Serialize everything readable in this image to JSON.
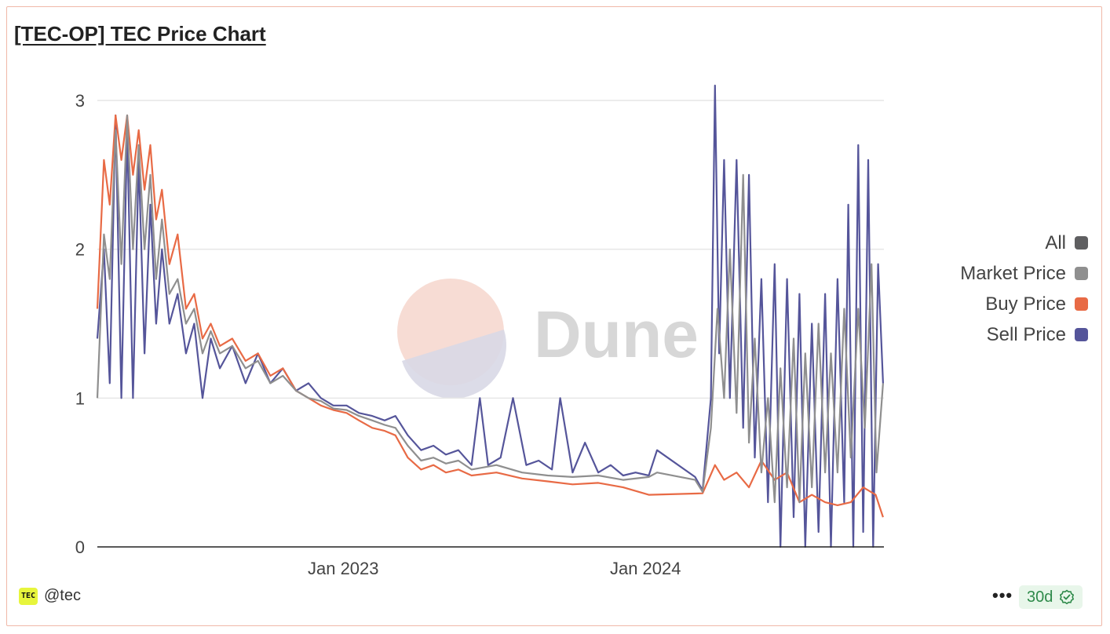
{
  "header": {
    "title": "[TEC-OP] TEC Price Chart"
  },
  "watermark": {
    "text": "Dune"
  },
  "footer": {
    "avatar_text": "TEC",
    "handle": "@tec",
    "more_label": "•••",
    "refresh_badge": "30d"
  },
  "colors": {
    "all": "#5f5f61",
    "market": "#8f8f8f",
    "buy": "#e86a45",
    "sell": "#55559a"
  },
  "legend": [
    {
      "label": "All",
      "color": "#5f5f61"
    },
    {
      "label": "Market Price",
      "color": "#8f8f8f"
    },
    {
      "label": "Buy Price",
      "color": "#e86a45"
    },
    {
      "label": "Sell Price",
      "color": "#55559a"
    }
  ],
  "chart_data": {
    "type": "line",
    "title": "[TEC-OP] TEC Price Chart",
    "xlabel": "",
    "ylabel": "",
    "x_type": "date",
    "xlim": [
      "2022-03-10",
      "2024-10-15"
    ],
    "ylim": [
      0,
      3
    ],
    "yticks": [
      0,
      1,
      2,
      3
    ],
    "xticks": [
      {
        "label": "Jan 2023",
        "date": "2023-01-01"
      },
      {
        "label": "Jan 2024",
        "date": "2024-01-01"
      }
    ],
    "grid": true,
    "legend_position": "right",
    "series": [
      {
        "name": "Sell Price",
        "points": [
          [
            "2022-03-10",
            1.4
          ],
          [
            "2022-03-18",
            2.0
          ],
          [
            "2022-03-25",
            1.1
          ],
          [
            "2022-04-01",
            2.9
          ],
          [
            "2022-04-08",
            1.0
          ],
          [
            "2022-04-15",
            2.8
          ],
          [
            "2022-04-22",
            1.0
          ],
          [
            "2022-04-29",
            2.6
          ],
          [
            "2022-05-06",
            1.3
          ],
          [
            "2022-05-13",
            2.3
          ],
          [
            "2022-05-20",
            1.5
          ],
          [
            "2022-05-27",
            2.0
          ],
          [
            "2022-06-05",
            1.5
          ],
          [
            "2022-06-15",
            1.7
          ],
          [
            "2022-06-25",
            1.3
          ],
          [
            "2022-07-05",
            1.5
          ],
          [
            "2022-07-15",
            1.0
          ],
          [
            "2022-07-25",
            1.4
          ],
          [
            "2022-08-05",
            1.2
          ],
          [
            "2022-08-20",
            1.35
          ],
          [
            "2022-09-05",
            1.1
          ],
          [
            "2022-09-20",
            1.3
          ],
          [
            "2022-10-05",
            1.1
          ],
          [
            "2022-10-20",
            1.2
          ],
          [
            "2022-11-05",
            1.05
          ],
          [
            "2022-11-20",
            1.1
          ],
          [
            "2022-12-05",
            1.0
          ],
          [
            "2022-12-20",
            0.95
          ],
          [
            "2023-01-05",
            0.95
          ],
          [
            "2023-01-20",
            0.9
          ],
          [
            "2023-02-05",
            0.88
          ],
          [
            "2023-02-20",
            0.85
          ],
          [
            "2023-03-05",
            0.88
          ],
          [
            "2023-03-20",
            0.75
          ],
          [
            "2023-04-05",
            0.65
          ],
          [
            "2023-04-20",
            0.68
          ],
          [
            "2023-05-05",
            0.62
          ],
          [
            "2023-05-20",
            0.65
          ],
          [
            "2023-06-05",
            0.55
          ],
          [
            "2023-06-15",
            1.0
          ],
          [
            "2023-06-25",
            0.55
          ],
          [
            "2023-07-10",
            0.6
          ],
          [
            "2023-07-25",
            1.0
          ],
          [
            "2023-08-10",
            0.55
          ],
          [
            "2023-08-25",
            0.58
          ],
          [
            "2023-09-10",
            0.52
          ],
          [
            "2023-09-20",
            1.0
          ],
          [
            "2023-10-05",
            0.5
          ],
          [
            "2023-10-20",
            0.7
          ],
          [
            "2023-11-05",
            0.5
          ],
          [
            "2023-11-20",
            0.55
          ],
          [
            "2023-12-05",
            0.48
          ],
          [
            "2023-12-20",
            0.5
          ],
          [
            "2024-01-05",
            0.48
          ],
          [
            "2024-01-15",
            0.65
          ],
          [
            "2024-03-01",
            0.47
          ],
          [
            "2024-03-10",
            0.38
          ],
          [
            "2024-03-20",
            1.0
          ],
          [
            "2024-03-25",
            3.1
          ],
          [
            "2024-03-30",
            1.3
          ],
          [
            "2024-04-05",
            2.6
          ],
          [
            "2024-04-12",
            1.0
          ],
          [
            "2024-04-20",
            2.6
          ],
          [
            "2024-04-28",
            0.8
          ],
          [
            "2024-05-05",
            2.5
          ],
          [
            "2024-05-12",
            0.6
          ],
          [
            "2024-05-20",
            1.8
          ],
          [
            "2024-05-28",
            0.3
          ],
          [
            "2024-06-05",
            1.9
          ],
          [
            "2024-06-12",
            0.0
          ],
          [
            "2024-06-20",
            1.8
          ],
          [
            "2024-06-28",
            0.2
          ],
          [
            "2024-07-05",
            1.7
          ],
          [
            "2024-07-12",
            0.0
          ],
          [
            "2024-07-20",
            1.5
          ],
          [
            "2024-07-28",
            0.1
          ],
          [
            "2024-08-05",
            1.7
          ],
          [
            "2024-08-12",
            0.0
          ],
          [
            "2024-08-20",
            1.8
          ],
          [
            "2024-08-28",
            0.3
          ],
          [
            "2024-09-02",
            2.3
          ],
          [
            "2024-09-08",
            0.0
          ],
          [
            "2024-09-14",
            2.7
          ],
          [
            "2024-09-20",
            0.1
          ],
          [
            "2024-09-26",
            2.6
          ],
          [
            "2024-10-02",
            0.0
          ],
          [
            "2024-10-08",
            1.9
          ],
          [
            "2024-10-14",
            1.1
          ]
        ]
      },
      {
        "name": "Buy Price",
        "points": [
          [
            "2022-03-10",
            1.6
          ],
          [
            "2022-03-18",
            2.6
          ],
          [
            "2022-03-25",
            2.3
          ],
          [
            "2022-04-01",
            2.9
          ],
          [
            "2022-04-08",
            2.6
          ],
          [
            "2022-04-15",
            2.9
          ],
          [
            "2022-04-22",
            2.5
          ],
          [
            "2022-04-29",
            2.8
          ],
          [
            "2022-05-06",
            2.4
          ],
          [
            "2022-05-13",
            2.7
          ],
          [
            "2022-05-20",
            2.2
          ],
          [
            "2022-05-27",
            2.4
          ],
          [
            "2022-06-05",
            1.9
          ],
          [
            "2022-06-15",
            2.1
          ],
          [
            "2022-06-25",
            1.6
          ],
          [
            "2022-07-05",
            1.7
          ],
          [
            "2022-07-15",
            1.4
          ],
          [
            "2022-07-25",
            1.5
          ],
          [
            "2022-08-05",
            1.35
          ],
          [
            "2022-08-20",
            1.4
          ],
          [
            "2022-09-05",
            1.25
          ],
          [
            "2022-09-20",
            1.3
          ],
          [
            "2022-10-05",
            1.15
          ],
          [
            "2022-10-20",
            1.2
          ],
          [
            "2022-11-05",
            1.05
          ],
          [
            "2022-11-20",
            1.0
          ],
          [
            "2022-12-05",
            0.95
          ],
          [
            "2022-12-20",
            0.92
          ],
          [
            "2023-01-05",
            0.9
          ],
          [
            "2023-01-20",
            0.85
          ],
          [
            "2023-02-05",
            0.8
          ],
          [
            "2023-02-20",
            0.78
          ],
          [
            "2023-03-05",
            0.75
          ],
          [
            "2023-03-20",
            0.6
          ],
          [
            "2023-04-05",
            0.52
          ],
          [
            "2023-04-20",
            0.55
          ],
          [
            "2023-05-05",
            0.5
          ],
          [
            "2023-05-20",
            0.52
          ],
          [
            "2023-06-05",
            0.48
          ],
          [
            "2023-07-05",
            0.5
          ],
          [
            "2023-08-05",
            0.46
          ],
          [
            "2023-09-05",
            0.44
          ],
          [
            "2023-10-05",
            0.42
          ],
          [
            "2023-11-05",
            0.43
          ],
          [
            "2023-12-05",
            0.4
          ],
          [
            "2024-01-05",
            0.35
          ],
          [
            "2024-03-10",
            0.36
          ],
          [
            "2024-03-25",
            0.55
          ],
          [
            "2024-04-05",
            0.45
          ],
          [
            "2024-04-20",
            0.5
          ],
          [
            "2024-05-05",
            0.4
          ],
          [
            "2024-05-20",
            0.58
          ],
          [
            "2024-06-05",
            0.45
          ],
          [
            "2024-06-20",
            0.5
          ],
          [
            "2024-07-05",
            0.3
          ],
          [
            "2024-07-20",
            0.35
          ],
          [
            "2024-08-05",
            0.3
          ],
          [
            "2024-08-20",
            0.28
          ],
          [
            "2024-09-05",
            0.3
          ],
          [
            "2024-09-20",
            0.4
          ],
          [
            "2024-10-05",
            0.35
          ],
          [
            "2024-10-14",
            0.2
          ]
        ]
      },
      {
        "name": "Market Price",
        "points": [
          [
            "2022-03-10",
            1.0
          ],
          [
            "2022-03-18",
            2.1
          ],
          [
            "2022-03-25",
            1.8
          ],
          [
            "2022-04-01",
            2.8
          ],
          [
            "2022-04-08",
            1.9
          ],
          [
            "2022-04-15",
            2.9
          ],
          [
            "2022-04-22",
            2.0
          ],
          [
            "2022-04-29",
            2.7
          ],
          [
            "2022-05-06",
            2.0
          ],
          [
            "2022-05-13",
            2.5
          ],
          [
            "2022-05-20",
            1.8
          ],
          [
            "2022-05-27",
            2.2
          ],
          [
            "2022-06-05",
            1.7
          ],
          [
            "2022-06-15",
            1.8
          ],
          [
            "2022-06-25",
            1.5
          ],
          [
            "2022-07-05",
            1.6
          ],
          [
            "2022-07-15",
            1.3
          ],
          [
            "2022-07-25",
            1.45
          ],
          [
            "2022-08-05",
            1.3
          ],
          [
            "2022-08-20",
            1.35
          ],
          [
            "2022-09-05",
            1.2
          ],
          [
            "2022-09-20",
            1.25
          ],
          [
            "2022-10-05",
            1.1
          ],
          [
            "2022-10-20",
            1.15
          ],
          [
            "2022-11-05",
            1.05
          ],
          [
            "2022-11-20",
            1.0
          ],
          [
            "2022-12-05",
            0.98
          ],
          [
            "2022-12-20",
            0.93
          ],
          [
            "2023-01-05",
            0.92
          ],
          [
            "2023-01-20",
            0.88
          ],
          [
            "2023-02-05",
            0.85
          ],
          [
            "2023-02-20",
            0.82
          ],
          [
            "2023-03-05",
            0.8
          ],
          [
            "2023-03-20",
            0.68
          ],
          [
            "2023-04-05",
            0.58
          ],
          [
            "2023-04-20",
            0.6
          ],
          [
            "2023-05-05",
            0.56
          ],
          [
            "2023-05-20",
            0.58
          ],
          [
            "2023-06-05",
            0.52
          ],
          [
            "2023-07-05",
            0.55
          ],
          [
            "2023-08-05",
            0.5
          ],
          [
            "2023-09-05",
            0.48
          ],
          [
            "2023-10-05",
            0.47
          ],
          [
            "2023-11-05",
            0.48
          ],
          [
            "2023-12-05",
            0.45
          ],
          [
            "2024-01-05",
            0.47
          ],
          [
            "2024-01-15",
            0.5
          ],
          [
            "2024-03-01",
            0.45
          ],
          [
            "2024-03-10",
            0.37
          ],
          [
            "2024-03-20",
            0.8
          ],
          [
            "2024-03-28",
            1.6
          ],
          [
            "2024-04-05",
            1.0
          ],
          [
            "2024-04-12",
            2.0
          ],
          [
            "2024-04-20",
            0.9
          ],
          [
            "2024-04-28",
            2.5
          ],
          [
            "2024-05-05",
            0.7
          ],
          [
            "2024-05-12",
            1.4
          ],
          [
            "2024-05-20",
            0.5
          ],
          [
            "2024-05-28",
            1.0
          ],
          [
            "2024-06-05",
            0.3
          ],
          [
            "2024-06-12",
            1.2
          ],
          [
            "2024-06-20",
            0.4
          ],
          [
            "2024-06-28",
            1.4
          ],
          [
            "2024-07-05",
            0.3
          ],
          [
            "2024-07-12",
            1.3
          ],
          [
            "2024-07-20",
            0.4
          ],
          [
            "2024-07-28",
            1.5
          ],
          [
            "2024-08-05",
            0.5
          ],
          [
            "2024-08-12",
            1.3
          ],
          [
            "2024-08-20",
            0.5
          ],
          [
            "2024-08-28",
            1.6
          ],
          [
            "2024-09-05",
            0.6
          ],
          [
            "2024-09-14",
            1.6
          ],
          [
            "2024-09-22",
            0.8
          ],
          [
            "2024-09-30",
            1.9
          ],
          [
            "2024-10-06",
            0.5
          ],
          [
            "2024-10-14",
            1.1
          ]
        ]
      }
    ]
  }
}
